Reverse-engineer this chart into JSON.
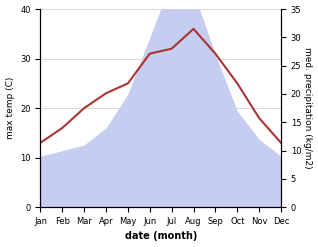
{
  "months": [
    "Jan",
    "Feb",
    "Mar",
    "Apr",
    "May",
    "Jun",
    "Jul",
    "Aug",
    "Sep",
    "Oct",
    "Nov",
    "Dec"
  ],
  "temperature": [
    13,
    16,
    20,
    23,
    25,
    31,
    32,
    36,
    31,
    25,
    18,
    13
  ],
  "precipitation": [
    9,
    10,
    11,
    14,
    20,
    30,
    40,
    38,
    27,
    17,
    12,
    9
  ],
  "temp_color": "#aa3333",
  "precip_fill_color": "#c5cdf0",
  "background_color": "#ffffff",
  "xlabel": "date (month)",
  "ylabel_left": "max temp (C)",
  "ylabel_right": "med. precipitation (kg/m2)",
  "ylim_left": [
    0,
    40
  ],
  "ylim_right": [
    0,
    35
  ],
  "yticks_left": [
    0,
    10,
    20,
    30,
    40
  ],
  "yticks_right": [
    0,
    5,
    10,
    15,
    20,
    25,
    30,
    35
  ]
}
